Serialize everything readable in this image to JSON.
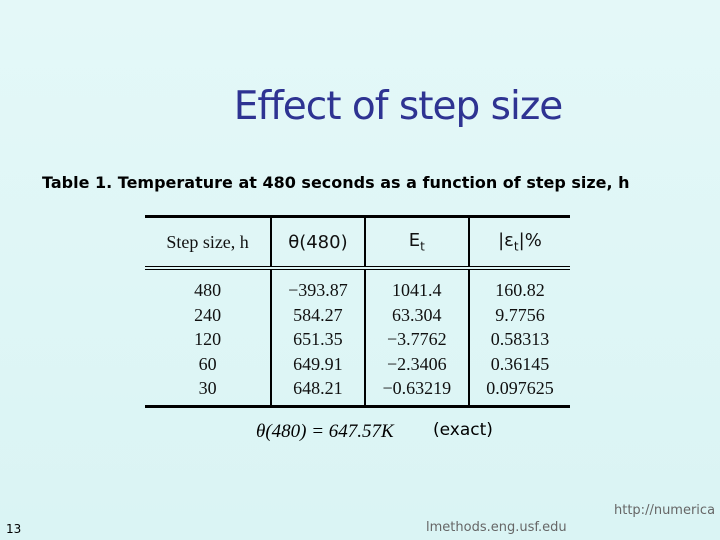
{
  "title": "Effect of step size",
  "caption": "Table 1.  Temperature at 480 seconds as a function of step size, h",
  "table": {
    "headers": [
      {
        "text": "Step size, h"
      },
      {
        "text": "θ(480)"
      },
      {
        "text": "E",
        "sub": "t"
      },
      {
        "text": "|ε",
        "sub": "t",
        "after": "|%"
      }
    ],
    "columns": [
      [
        "480",
        "240",
        "120",
        "60",
        "30"
      ],
      [
        "−393.87",
        "584.27",
        "651.35",
        "649.91",
        "648.21"
      ],
      [
        "1041.4",
        "63.304",
        "−3.7762",
        "−2.3406",
        "−0.63219"
      ],
      [
        "160.82",
        "9.7756",
        "0.58313",
        "0.36145",
        "0.097625"
      ]
    ]
  },
  "equation": "θ(480) = 647.57K",
  "note": "(exact)",
  "page_number": "13",
  "url_part1": "http://numerica",
  "url_part2": "lmethods.eng.usf.edu"
}
